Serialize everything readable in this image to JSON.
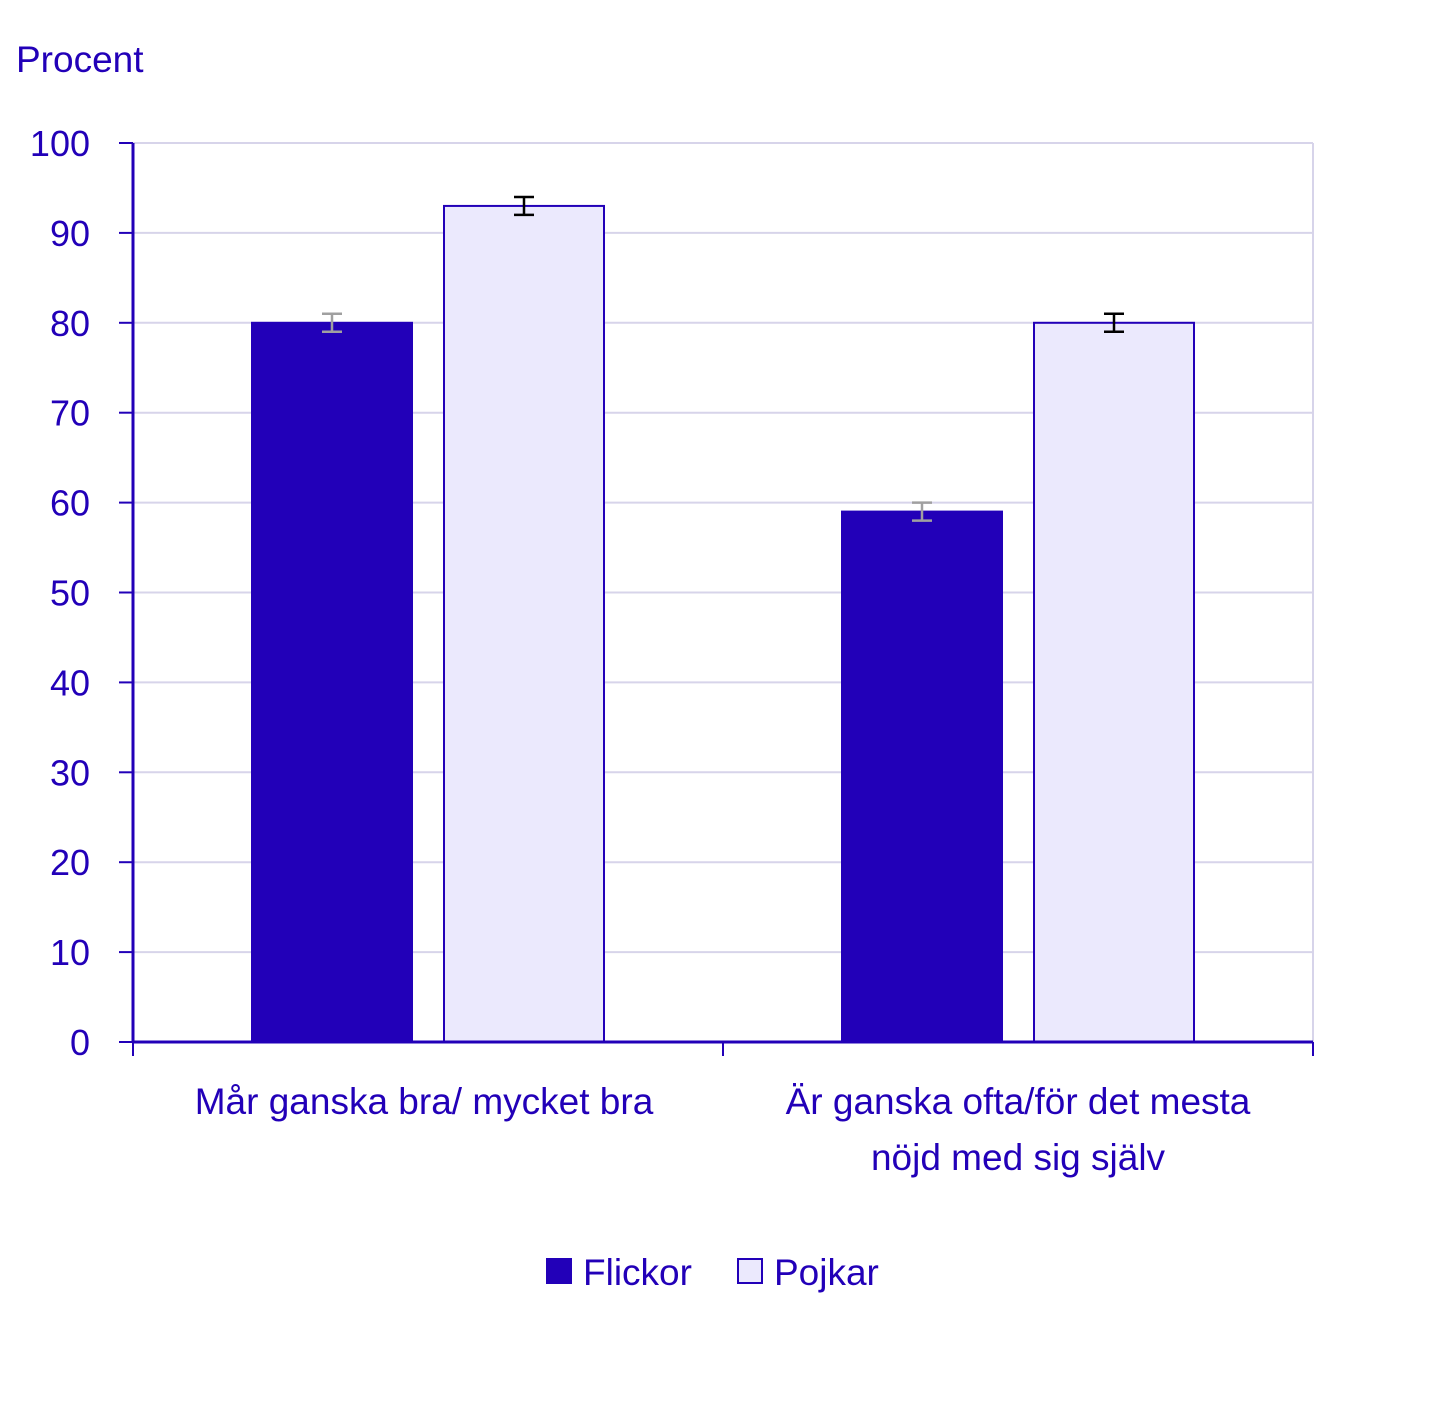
{
  "chart_data": {
    "type": "bar",
    "ylabel": "Procent",
    "ylim": [
      0,
      100
    ],
    "yticks": [
      0,
      10,
      20,
      30,
      40,
      50,
      60,
      70,
      80,
      90,
      100
    ],
    "grid": true,
    "legend_position": "bottom-center",
    "categories": [
      [
        "Mår ganska bra/ mycket bra"
      ],
      [
        "Är ganska ofta/för det mesta",
        "nöjd med sig själv"
      ]
    ],
    "series": [
      {
        "name": "Flickor",
        "color": "#2200b8",
        "values": [
          80,
          59
        ],
        "error_low": [
          79,
          58
        ],
        "error_high": [
          81,
          60
        ],
        "error_color": "#a0a0a0"
      },
      {
        "name": "Pojkar",
        "color": "#ebe9fd",
        "values": [
          93,
          80
        ],
        "error_low": [
          92,
          79
        ],
        "error_high": [
          94,
          81
        ],
        "error_color": "#000000"
      }
    ],
    "colors": {
      "axis": "#2200b8",
      "text": "#2200b8",
      "grid": "#d7d4ea"
    }
  }
}
